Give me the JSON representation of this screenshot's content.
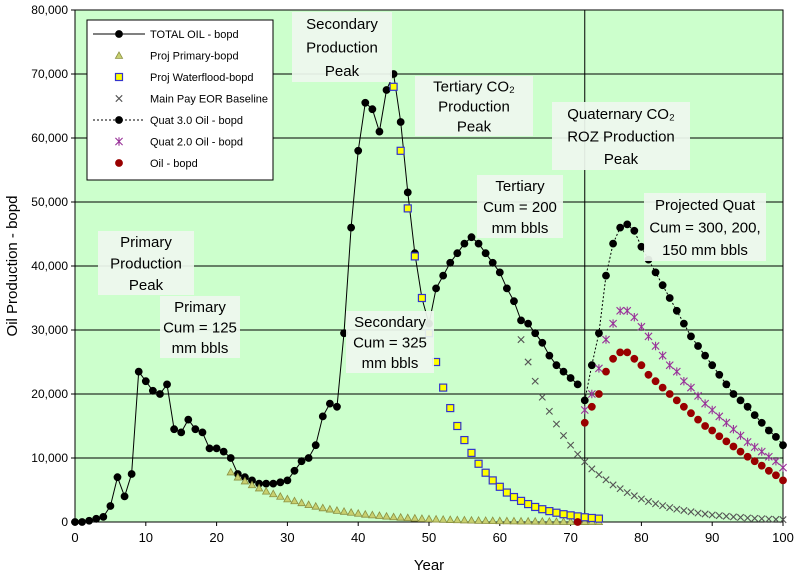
{
  "chart_data": {
    "type": "line",
    "xlabel": "Year",
    "ylabel": "Oil Production - bopd",
    "xlim": [
      0,
      100
    ],
    "ylim": [
      0,
      80000
    ],
    "grid": "horizontal",
    "plot_background": "#ccffcc",
    "x_ticks": [
      "0",
      "10",
      "20",
      "30",
      "40",
      "50",
      "60",
      "70",
      "80",
      "90",
      "100"
    ],
    "y_ticks": [
      "0",
      "10,000",
      "20,000",
      "30,000",
      "40,000",
      "50,000",
      "60,000",
      "70,000",
      "80,000"
    ],
    "vline_x": 72,
    "legend": {
      "placement": "top-left",
      "entries": [
        {
          "label": "TOTAL OIL - bopd",
          "marker": "circle",
          "color": "#000000",
          "line": "solid"
        },
        {
          "label": "Proj Primary-bopd",
          "marker": "triangle",
          "color": "#c8d070",
          "line": "none"
        },
        {
          "label": "Proj Waterflood-bopd",
          "marker": "square",
          "color": "#ffff00",
          "line": "none"
        },
        {
          "label": "Main Pay EOR Baseline",
          "marker": "x",
          "color": "#555555",
          "line": "none"
        },
        {
          "label": "Quat 3.0 Oil - bopd",
          "marker": "circle",
          "color": "#000000",
          "line": "dotted"
        },
        {
          "label": "Quat 2.0 Oil - bopd",
          "marker": "star",
          "color": "#993399",
          "line": "none"
        },
        {
          "label": "Oil - bopd",
          "marker": "circle",
          "color": "#990000",
          "line": "none"
        }
      ]
    },
    "annotations": [
      {
        "lines": [
          "Secondary",
          "Production",
          "Peak"
        ]
      },
      {
        "lines": [
          "Tertiary CO₂",
          "Production",
          "Peak"
        ]
      },
      {
        "lines": [
          "Quaternary CO₂",
          "ROZ Production",
          "Peak"
        ]
      },
      {
        "lines": [
          "Primary",
          "Production",
          "Peak"
        ]
      },
      {
        "lines": [
          "Primary",
          "Cum = 125",
          "mm bbls"
        ]
      },
      {
        "lines": [
          "Secondary",
          "Cum = 325",
          "mm bbls"
        ]
      },
      {
        "lines": [
          "Tertiary",
          "Cum = 200",
          "mm bbls"
        ]
      },
      {
        "lines": [
          "Projected Quat",
          "Cum = 300, 200,",
          "150 mm bbls"
        ]
      }
    ],
    "series": [
      {
        "name": "TOTAL OIL - bopd",
        "color": "#000000",
        "marker": "circle",
        "x": [
          0,
          1,
          2,
          3,
          4,
          5,
          6,
          7,
          8,
          9,
          10,
          11,
          12,
          13,
          14,
          15,
          16,
          17,
          18,
          19,
          20,
          21,
          22,
          23,
          24,
          25,
          26,
          27,
          28,
          29,
          30,
          31,
          32,
          33,
          34,
          35,
          36,
          37,
          38,
          39,
          40,
          41,
          42,
          43,
          44,
          45,
          46,
          47,
          48,
          49,
          50,
          51,
          52,
          53,
          54,
          55,
          56,
          57,
          58,
          59,
          60,
          61,
          62,
          63,
          64,
          65,
          66,
          67,
          68,
          69,
          70,
          71
        ],
        "y": [
          0,
          0,
          200,
          500,
          800,
          2500,
          7000,
          4000,
          7500,
          23500,
          22000,
          20500,
          20000,
          21500,
          14500,
          14000,
          16000,
          14500,
          14000,
          11500,
          11500,
          11000,
          10000,
          7500,
          7000,
          6500,
          6000,
          6000,
          6000,
          6200,
          6500,
          8000,
          9500,
          10000,
          12000,
          16500,
          18500,
          18000,
          29500,
          46000,
          58000,
          65500,
          64500,
          61000,
          67500,
          70000,
          62500,
          51500,
          42000,
          35000,
          31000,
          36500,
          38500,
          40500,
          42000,
          43500,
          44500,
          43500,
          42000,
          40500,
          39000,
          36500,
          34500,
          31500,
          31000,
          29500,
          28000,
          26000,
          24500,
          23500,
          22500,
          21500
        ]
      },
      {
        "name": "Proj Primary-bopd",
        "color": "#c8d070",
        "marker": "triangle",
        "x": [
          22,
          23,
          24,
          25,
          26,
          27,
          28,
          29,
          30,
          31,
          32,
          33,
          34,
          35,
          36,
          37,
          38,
          39,
          40,
          41,
          42,
          43,
          44,
          45,
          46,
          47,
          48,
          49,
          50,
          51,
          52,
          53,
          54,
          55,
          56,
          57,
          58,
          59,
          60,
          61,
          62,
          63,
          64,
          65,
          66,
          67,
          68,
          69,
          70,
          71,
          72,
          73,
          74
        ],
        "y": [
          7800,
          7000,
          6400,
          5800,
          5300,
          4800,
          4400,
          4000,
          3600,
          3300,
          3000,
          2700,
          2450,
          2200,
          2000,
          1800,
          1650,
          1500,
          1350,
          1200,
          1100,
          1000,
          900,
          800,
          730,
          660,
          600,
          540,
          490,
          440,
          400,
          360,
          330,
          300,
          270,
          240,
          220,
          200,
          180,
          160,
          145,
          130,
          120,
          110,
          100,
          90,
          80,
          70,
          60,
          55,
          50,
          45,
          40
        ]
      },
      {
        "name": "Proj Waterflood-bopd",
        "color": "#ffff00",
        "marker": "square",
        "x": [
          45,
          46,
          47,
          48,
          49,
          50,
          51,
          52,
          53,
          54,
          55,
          56,
          57,
          58,
          59,
          60,
          61,
          62,
          63,
          64,
          65,
          66,
          67,
          68,
          69,
          70,
          71,
          72,
          73,
          74
        ],
        "y": [
          68000,
          58000,
          49000,
          41500,
          35000,
          29500,
          25000,
          21000,
          17800,
          15000,
          12800,
          10800,
          9100,
          7700,
          6500,
          5500,
          4600,
          3900,
          3300,
          2800,
          2350,
          2000,
          1700,
          1450,
          1220,
          1040,
          880,
          740,
          630,
          530
        ]
      },
      {
        "name": "Main Pay EOR Baseline",
        "color": "#555555",
        "marker": "x",
        "x": [
          63,
          64,
          65,
          66,
          67,
          68,
          69,
          70,
          71,
          72,
          73,
          74,
          75,
          76,
          77,
          78,
          79,
          80,
          81,
          82,
          83,
          84,
          85,
          86,
          87,
          88,
          89,
          90,
          91,
          92,
          93,
          94,
          95,
          96,
          97,
          98,
          99,
          100
        ],
        "y": [
          28500,
          25000,
          22000,
          19500,
          17300,
          15300,
          13500,
          12000,
          10600,
          9400,
          8300,
          7400,
          6600,
          5800,
          5200,
          4600,
          4100,
          3600,
          3200,
          2850,
          2550,
          2250,
          2000,
          1800,
          1600,
          1400,
          1250,
          1100,
          1000,
          900,
          800,
          720,
          640,
          570,
          510,
          460,
          410,
          370
        ]
      },
      {
        "name": "Quat 3.0 Oil - bopd",
        "color": "#000000",
        "marker": "circle",
        "x": [
          72,
          73,
          74,
          75,
          76,
          77,
          78,
          79,
          80,
          81,
          82,
          83,
          84,
          85,
          86,
          87,
          88,
          89,
          90,
          91,
          92,
          93,
          94,
          95,
          96,
          97,
          98,
          99,
          100
        ],
        "y": [
          19000,
          24500,
          29500,
          38500,
          43500,
          46000,
          46500,
          45500,
          43000,
          41000,
          39000,
          37000,
          35000,
          33000,
          31000,
          29000,
          27500,
          26000,
          24500,
          23000,
          21500,
          20000,
          19000,
          18000,
          16700,
          15500,
          14300,
          13300,
          12000
        ]
      },
      {
        "name": "Quat 2.0 Oil - bopd",
        "color": "#993399",
        "marker": "star",
        "x": [
          72,
          73,
          74,
          75,
          76,
          77,
          78,
          79,
          80,
          81,
          82,
          83,
          84,
          85,
          86,
          87,
          88,
          89,
          90,
          91,
          92,
          93,
          94,
          95,
          96,
          97,
          98,
          99,
          100
        ],
        "y": [
          17500,
          20000,
          24000,
          28500,
          31000,
          33000,
          33000,
          32000,
          30500,
          29000,
          27500,
          26000,
          24500,
          23500,
          22000,
          21000,
          19700,
          18500,
          17500,
          16500,
          15500,
          14500,
          13500,
          12500,
          11700,
          11000,
          10200,
          9500,
          8500
        ]
      },
      {
        "name": "Oil - bopd",
        "color": "#990000",
        "marker": "circle",
        "x": [
          71,
          72,
          73,
          74,
          75,
          76,
          77,
          78,
          79,
          80,
          81,
          82,
          83,
          84,
          85,
          86,
          87,
          88,
          89,
          90,
          91,
          92,
          93,
          94,
          95,
          96,
          97,
          98,
          99,
          100
        ],
        "y": [
          0,
          15500,
          18000,
          20000,
          23500,
          25500,
          26500,
          26500,
          25500,
          24500,
          23000,
          22000,
          21000,
          20000,
          19000,
          18000,
          17000,
          16000,
          15000,
          14300,
          13400,
          12600,
          11800,
          11000,
          10200,
          9500,
          8800,
          8000,
          7300,
          6500
        ]
      }
    ]
  }
}
